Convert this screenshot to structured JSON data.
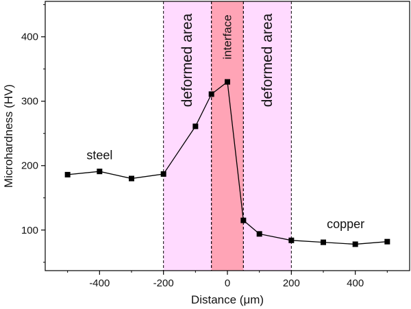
{
  "chart_data": {
    "type": "line",
    "title": "",
    "xlabel": "Distance (μm)",
    "ylabel": "Microhardness (HV)",
    "xlim": [
      -570,
      570
    ],
    "ylim": [
      37,
      455
    ],
    "x_ticks": [
      -400,
      -200,
      0,
      200,
      400
    ],
    "x_tick_labels": [
      "-400",
      "-200",
      "0",
      "200",
      "400"
    ],
    "y_ticks": [
      100,
      200,
      300,
      400
    ],
    "y_tick_labels": [
      "100",
      "200",
      "300",
      400
    ],
    "grid": false,
    "legend": "none",
    "series": [
      {
        "x": [
          -500,
          -400,
          -300,
          -200,
          -100,
          -50,
          0,
          50,
          100,
          200,
          300,
          400,
          500
        ],
        "y": [
          186,
          191,
          180,
          187,
          261,
          311,
          330,
          115,
          94,
          84,
          81,
          78,
          82
        ],
        "marker": "square",
        "color": "#000000"
      }
    ],
    "regions": [
      {
        "label": "deformed area",
        "x_start": -200,
        "x_end": -50,
        "color": "#ff8cff",
        "opacity": 0.32
      },
      {
        "label": "interface",
        "x_start": -50,
        "x_end": 50,
        "color": "#ff4a6e",
        "opacity": 0.5
      },
      {
        "label": "deformed area",
        "x_start": 50,
        "x_end": 200,
        "color": "#ff8cff",
        "opacity": 0.32
      }
    ],
    "annotations": [
      {
        "text": "steel",
        "x": -400,
        "y": 210
      },
      {
        "text": "copper",
        "x": 370,
        "y": 103
      }
    ]
  }
}
